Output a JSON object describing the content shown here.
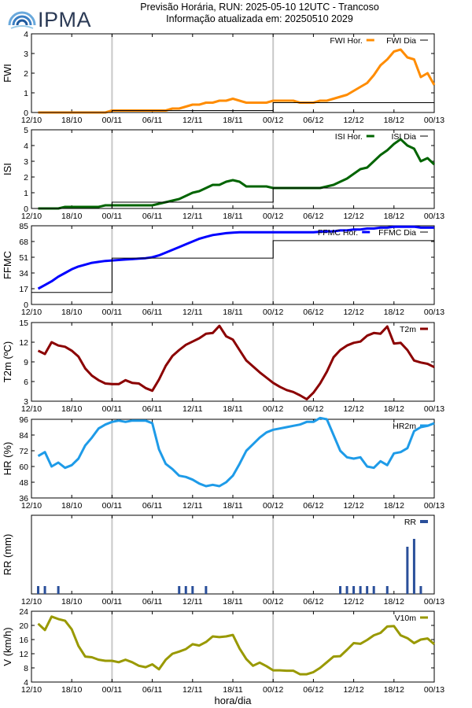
{
  "header": {
    "logo_text": "IPMA",
    "title_line1": "Previsão Horária, RUN: 2025-05-10 12UTC - Trancoso",
    "title_line2": "Informação atualizada em: 20250510 2029"
  },
  "colors": {
    "fwi": "#ff8c00",
    "isi": "#006400",
    "ffmc": "#0000ff",
    "t2m": "#8b0000",
    "hr2m": "#1e9be8",
    "rr": "#2a4f9a",
    "v10m": "#999900",
    "daily": "#000000",
    "vline": "#c8c8c8"
  },
  "x_axis": {
    "label": "hora/dia",
    "tick_labels": [
      "12/10",
      "18/10",
      "00/11",
      "06/11",
      "12/11",
      "18/11",
      "00/12",
      "06/12",
      "12/12",
      "18/12",
      "00/13"
    ],
    "tick_hours": [
      0,
      6,
      12,
      18,
      24,
      30,
      36,
      42,
      48,
      54,
      60
    ],
    "range_hours": [
      0,
      60
    ],
    "day_boundaries_hours": [
      12,
      36
    ]
  },
  "chart_data": [
    {
      "type": "line",
      "ylabel": "FWI",
      "ylim": [
        0,
        4
      ],
      "yticks": [
        0,
        1,
        2,
        3,
        4
      ],
      "legend": "top-right",
      "series": [
        {
          "name": "FWI Hor.",
          "kind": "hourly",
          "x": [
            1,
            2,
            3,
            4,
            5,
            6,
            7,
            8,
            9,
            10,
            11,
            12,
            13,
            14,
            15,
            16,
            17,
            18,
            19,
            20,
            21,
            22,
            23,
            24,
            25,
            26,
            27,
            28,
            29,
            30,
            31,
            32,
            33,
            34,
            35,
            36,
            37,
            38,
            39,
            40,
            41,
            42,
            43,
            44,
            45,
            46,
            47,
            48,
            49,
            50,
            51,
            52,
            53,
            54,
            55,
            56,
            57,
            58,
            59,
            60
          ],
          "values": [
            0,
            0,
            0,
            0,
            0,
            0,
            0,
            0,
            0,
            0,
            0,
            0.1,
            0.1,
            0.1,
            0.1,
            0.1,
            0.1,
            0.1,
            0.1,
            0.1,
            0.2,
            0.2,
            0.3,
            0.4,
            0.4,
            0.5,
            0.5,
            0.6,
            0.6,
            0.7,
            0.6,
            0.5,
            0.5,
            0.5,
            0.5,
            0.6,
            0.6,
            0.6,
            0.6,
            0.5,
            0.5,
            0.5,
            0.6,
            0.6,
            0.7,
            0.8,
            0.9,
            1.1,
            1.3,
            1.5,
            1.9,
            2.4,
            2.7,
            3.1,
            3.2,
            2.8,
            2.7,
            1.8,
            2.0,
            1.4
          ]
        },
        {
          "name": "FWI Dia",
          "kind": "daily",
          "steps": [
            {
              "from": 0,
              "to": 12,
              "value": 0
            },
            {
              "from": 12,
              "to": 36,
              "value": 0.1
            },
            {
              "from": 36,
              "to": 60,
              "value": 0.5
            }
          ]
        }
      ]
    },
    {
      "type": "line",
      "ylabel": "ISI",
      "ylim": [
        0,
        5
      ],
      "yticks": [
        0,
        1,
        2,
        3,
        4,
        5
      ],
      "legend": "top-right",
      "series": [
        {
          "name": "ISI Hor.",
          "kind": "hourly",
          "x": [
            1,
            2,
            3,
            4,
            5,
            6,
            7,
            8,
            9,
            10,
            11,
            12,
            13,
            14,
            15,
            16,
            17,
            18,
            19,
            20,
            21,
            22,
            23,
            24,
            25,
            26,
            27,
            28,
            29,
            30,
            31,
            32,
            33,
            34,
            35,
            36,
            37,
            38,
            39,
            40,
            41,
            42,
            43,
            44,
            45,
            46,
            47,
            48,
            49,
            50,
            51,
            52,
            53,
            54,
            55,
            56,
            57,
            58,
            59,
            60
          ],
          "values": [
            0,
            0,
            0,
            0,
            0.1,
            0.1,
            0.1,
            0.1,
            0.1,
            0.1,
            0.2,
            0.2,
            0.2,
            0.2,
            0.2,
            0.2,
            0.2,
            0.2,
            0.3,
            0.4,
            0.5,
            0.6,
            0.8,
            1.0,
            1.1,
            1.3,
            1.5,
            1.5,
            1.7,
            1.8,
            1.7,
            1.4,
            1.4,
            1.4,
            1.4,
            1.3,
            1.3,
            1.3,
            1.3,
            1.3,
            1.3,
            1.3,
            1.3,
            1.4,
            1.5,
            1.7,
            1.9,
            2.2,
            2.5,
            2.6,
            3.0,
            3.4,
            3.7,
            4.1,
            4.4,
            4.0,
            3.8,
            3.0,
            3.2,
            2.8
          ]
        },
        {
          "name": "ISI Dia",
          "kind": "daily",
          "steps": [
            {
              "from": 0,
              "to": 12,
              "value": 0
            },
            {
              "from": 12,
              "to": 36,
              "value": 0.4
            },
            {
              "from": 36,
              "to": 60,
              "value": 1.3
            }
          ]
        }
      ]
    },
    {
      "type": "line",
      "ylabel": "FFMC",
      "ylim": [
        0,
        85
      ],
      "yticks": [
        0,
        17,
        34,
        51,
        68,
        85
      ],
      "legend": "top-right",
      "series": [
        {
          "name": "FFMC Hor.",
          "kind": "hourly",
          "x": [
            1,
            2,
            3,
            4,
            5,
            6,
            7,
            8,
            9,
            10,
            11,
            12,
            13,
            14,
            15,
            16,
            17,
            18,
            19,
            20,
            21,
            22,
            23,
            24,
            25,
            26,
            27,
            28,
            29,
            30,
            31,
            32,
            33,
            34,
            35,
            36,
            37,
            38,
            39,
            40,
            41,
            42,
            43,
            44,
            45,
            46,
            47,
            48,
            49,
            50,
            51,
            52,
            53,
            54,
            55,
            56,
            57,
            58,
            59,
            60
          ],
          "values": [
            17,
            21,
            25,
            30,
            34,
            38,
            41,
            43,
            45,
            46,
            47,
            47.5,
            48,
            48.5,
            49,
            49.5,
            50,
            51,
            53,
            56,
            59,
            62,
            65,
            68,
            71,
            73,
            75,
            76,
            77,
            77.5,
            78,
            78,
            78,
            78,
            78,
            78,
            78,
            78,
            78,
            78,
            78,
            78,
            78.5,
            79,
            79,
            80,
            80,
            81,
            81,
            82,
            82,
            83,
            83,
            84,
            84,
            84,
            84,
            83,
            83,
            83
          ]
        },
        {
          "name": "FFMC Dia",
          "kind": "daily",
          "steps": [
            {
              "from": 0,
              "to": 12,
              "value": 13
            },
            {
              "from": 12,
              "to": 36,
              "value": 50
            },
            {
              "from": 36,
              "to": 60,
              "value": 69
            }
          ]
        }
      ]
    },
    {
      "type": "line",
      "ylabel": "T2m (ºC)",
      "ylim": [
        3,
        15
      ],
      "yticks": [
        3,
        6,
        9,
        12,
        15
      ],
      "legend": "top-right",
      "series": [
        {
          "name": "T2m",
          "kind": "hourly",
          "x": [
            1,
            2,
            3,
            4,
            5,
            6,
            7,
            8,
            9,
            10,
            11,
            12,
            13,
            14,
            15,
            16,
            17,
            18,
            19,
            20,
            21,
            22,
            23,
            24,
            25,
            26,
            27,
            28,
            29,
            30,
            31,
            32,
            33,
            34,
            35,
            36,
            37,
            38,
            39,
            40,
            41,
            42,
            43,
            44,
            45,
            46,
            47,
            48,
            49,
            50,
            51,
            52,
            53,
            54,
            55,
            56,
            57,
            58,
            59,
            60
          ],
          "values": [
            10.7,
            10.2,
            12.0,
            11.5,
            11.3,
            10.7,
            9.8,
            8.0,
            6.9,
            6.2,
            5.7,
            5.6,
            5.6,
            6.2,
            5.8,
            5.7,
            5.0,
            4.6,
            6.3,
            8.4,
            9.9,
            10.8,
            11.6,
            12.1,
            12.6,
            13.3,
            13.4,
            14.5,
            12.9,
            12.4,
            10.8,
            9.2,
            8.3,
            7.4,
            6.6,
            5.8,
            5.2,
            4.7,
            4.4,
            3.9,
            3.3,
            4.3,
            5.7,
            7.5,
            9.7,
            10.8,
            11.5,
            11.9,
            12.1,
            13.0,
            13.4,
            13.3,
            14.4,
            11.8,
            11.9,
            10.8,
            9.2,
            8.9,
            8.7,
            8.2
          ]
        }
      ]
    },
    {
      "type": "line",
      "ylabel": "HR (%)",
      "ylim": [
        36,
        96
      ],
      "yticks": [
        36,
        48,
        60,
        72,
        84,
        96
      ],
      "legend": "top-right",
      "series": [
        {
          "name": "HR2m",
          "kind": "hourly",
          "x": [
            1,
            2,
            3,
            4,
            5,
            6,
            7,
            8,
            9,
            10,
            11,
            12,
            13,
            14,
            15,
            16,
            17,
            18,
            19,
            20,
            21,
            22,
            23,
            24,
            25,
            26,
            27,
            28,
            29,
            30,
            31,
            32,
            33,
            34,
            35,
            36,
            37,
            38,
            39,
            40,
            41,
            42,
            43,
            44,
            45,
            46,
            47,
            48,
            49,
            50,
            51,
            52,
            53,
            54,
            55,
            56,
            57,
            58,
            59,
            60
          ],
          "values": [
            68,
            71,
            60,
            63,
            59,
            61,
            66,
            76,
            82,
            89,
            92,
            94,
            95,
            94,
            95,
            95,
            95,
            93,
            73,
            62,
            58,
            53,
            52,
            50,
            47,
            45,
            46,
            45,
            48,
            53,
            62,
            72,
            77,
            82,
            86,
            88,
            89,
            90,
            91,
            92,
            94,
            94,
            97,
            96,
            84,
            72,
            67,
            66,
            67,
            60,
            59,
            64,
            61,
            70,
            71,
            74,
            87,
            90,
            91,
            93
          ]
        }
      ]
    },
    {
      "type": "bar",
      "ylabel": "RR (mm)",
      "legend": "top-right",
      "series": [
        {
          "name": "RR",
          "kind": "bars",
          "x": [
            1,
            2,
            4,
            22,
            23,
            24,
            26,
            46,
            47,
            48,
            49,
            50,
            51,
            53,
            56,
            57,
            58
          ],
          "values": [
            0.1,
            0.1,
            0.1,
            0.1,
            0.1,
            0.1,
            0.1,
            0.1,
            0.1,
            0.1,
            0.1,
            0.1,
            0.1,
            0.1,
            0.6,
            0.7,
            0.1
          ]
        }
      ]
    },
    {
      "type": "line",
      "ylabel": "V (km/h)",
      "ylim": [
        4,
        24
      ],
      "yticks": [
        4,
        8,
        12,
        16,
        20,
        24
      ],
      "legend": "top-right",
      "series": [
        {
          "name": "V10m",
          "kind": "hourly",
          "x": [
            1,
            2,
            3,
            4,
            5,
            6,
            7,
            8,
            9,
            10,
            11,
            12,
            13,
            14,
            15,
            16,
            17,
            18,
            19,
            20,
            21,
            22,
            23,
            24,
            25,
            26,
            27,
            28,
            29,
            30,
            31,
            32,
            33,
            34,
            35,
            36,
            37,
            38,
            39,
            40,
            41,
            42,
            43,
            44,
            45,
            46,
            47,
            48,
            49,
            50,
            51,
            52,
            53,
            54,
            55,
            56,
            57,
            58,
            59,
            60
          ],
          "values": [
            20.5,
            18.7,
            22.5,
            21.8,
            21.3,
            18.9,
            14.2,
            11.2,
            11.0,
            10.3,
            10.0,
            10.0,
            9.6,
            10.3,
            9.6,
            8.6,
            8.2,
            9.0,
            7.6,
            10.3,
            12.0,
            12.6,
            13.3,
            14.7,
            14.3,
            15.3,
            16.9,
            16.7,
            16.9,
            17.3,
            13.5,
            10.5,
            8.6,
            9.5,
            8.5,
            7.3,
            7.3,
            7.2,
            7.2,
            6.2,
            6.2,
            6.8,
            8.0,
            9.6,
            11.2,
            11.3,
            13.1,
            15.0,
            14.8,
            15.9,
            17.2,
            17.9,
            19.7,
            19.8,
            17.2,
            16.4,
            15.0,
            16.0,
            16.3,
            14.7
          ]
        }
      ]
    }
  ]
}
